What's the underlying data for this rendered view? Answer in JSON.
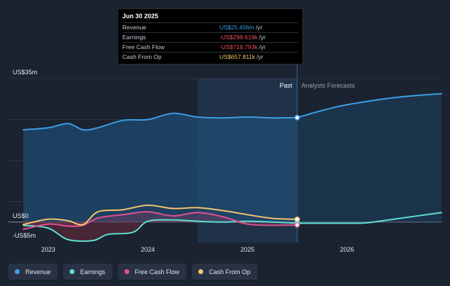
{
  "tooltip": {
    "date": "Jun 30 2025",
    "rows": [
      {
        "label": "Revenue",
        "value": "US$25.456m",
        "unit": "/yr",
        "color": "#3c9ee6"
      },
      {
        "label": "Earnings",
        "value": "-US$298.619k",
        "unit": "/yr",
        "color": "#ef4f62"
      },
      {
        "label": "Free Cash Flow",
        "value": "-US$718.793k",
        "unit": "/yr",
        "color": "#ef4f62"
      },
      {
        "label": "Cash From Op",
        "value": "US$657.811k",
        "unit": "/yr",
        "color": "#f2c46d"
      }
    ]
  },
  "legend": [
    {
      "label": "Revenue",
      "color": "#3c9ee6"
    },
    {
      "label": "Earnings",
      "color": "#5fe0d2"
    },
    {
      "label": "Free Cash Flow",
      "color": "#e0508f"
    },
    {
      "label": "Cash From Op",
      "color": "#f2c46d"
    }
  ],
  "chart_data": {
    "type": "line",
    "ylabel_top": "US$35m",
    "ylabel_zero": "US$0",
    "ylabel_bottom": "-US$5m",
    "ylim": [
      -5,
      35
    ],
    "xlim": [
      2022.6,
      2026.95
    ],
    "x_ticks": [
      "2023",
      "2024",
      "2025",
      "2026"
    ],
    "x_tick_values": [
      2023,
      2024,
      2025,
      2026
    ],
    "past_label": "Past",
    "forecast_label": "Analysts Forecasts",
    "past_start": 2024.5,
    "divider": 2025.5,
    "series": [
      {
        "name": "Revenue",
        "color": "#3c9ee6",
        "x": [
          2022.75,
          2023.0,
          2023.2,
          2023.35,
          2023.5,
          2023.75,
          2024.0,
          2024.25,
          2024.5,
          2024.75,
          2025.0,
          2025.25,
          2025.5
        ],
        "y": [
          22.5,
          23.0,
          24.0,
          22.5,
          23.0,
          24.8,
          25.0,
          26.5,
          25.6,
          25.4,
          25.6,
          25.4,
          25.456
        ],
        "forecast_x": [
          2025.5,
          2025.75,
          2026.0,
          2026.5,
          2026.95
        ],
        "forecast_y": [
          25.456,
          27.2,
          28.6,
          30.4,
          31.3
        ]
      },
      {
        "name": "Earnings",
        "color": "#5fe0d2",
        "x": [
          2022.75,
          2023.0,
          2023.2,
          2023.45,
          2023.6,
          2023.85,
          2024.0,
          2024.25,
          2024.5,
          2024.75,
          2025.0,
          2025.25,
          2025.5
        ],
        "y": [
          -0.8,
          -1.5,
          -4.3,
          -4.5,
          -3.0,
          -2.5,
          0.2,
          0.5,
          0.2,
          0.0,
          0.2,
          0.0,
          -0.299
        ],
        "forecast_x": [
          2025.5,
          2026.0,
          2026.2,
          2026.5,
          2026.95
        ],
        "forecast_y": [
          -0.299,
          -0.3,
          -0.2,
          0.8,
          2.3
        ]
      },
      {
        "name": "Free Cash Flow",
        "color": "#e0508f",
        "x": [
          2022.75,
          2023.0,
          2023.2,
          2023.35,
          2023.5,
          2023.75,
          2024.0,
          2024.25,
          2024.5,
          2024.75,
          2025.0,
          2025.25,
          2025.5
        ],
        "y": [
          -1.8,
          -0.5,
          -1.0,
          -0.8,
          1.0,
          1.8,
          2.5,
          1.5,
          2.3,
          1.3,
          -0.5,
          -0.8,
          -0.719
        ]
      },
      {
        "name": "Cash From Op",
        "color": "#f2c46d",
        "x": [
          2022.75,
          2023.0,
          2023.2,
          2023.35,
          2023.5,
          2023.75,
          2024.0,
          2024.25,
          2024.5,
          2024.75,
          2025.0,
          2025.25,
          2025.5
        ],
        "y": [
          -0.6,
          0.7,
          0.3,
          -0.6,
          2.5,
          3.0,
          4.1,
          3.3,
          3.5,
          2.8,
          1.8,
          0.9,
          0.658
        ]
      }
    ]
  }
}
